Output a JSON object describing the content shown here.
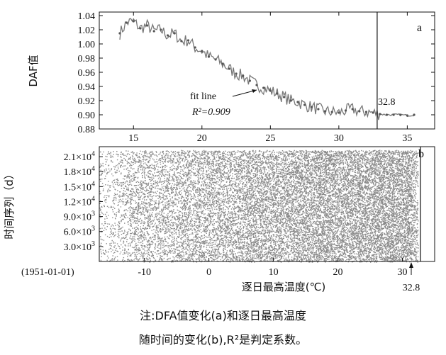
{
  "chart_data": [
    {
      "type": "line",
      "panel_label": "a",
      "ylabel": "DAF值",
      "xlim": [
        12.5,
        37
      ],
      "ylim": [
        0.88,
        1.045
      ],
      "x_ticks": [
        15,
        20,
        25,
        30,
        35
      ],
      "y_ticks": [
        "0.88",
        "0.90",
        "0.92",
        "0.94",
        "0.96",
        "0.98",
        "1.00",
        "1.02",
        "1.04"
      ],
      "x": [
        14,
        14.5,
        15,
        15.5,
        16,
        16.5,
        17,
        17.5,
        18,
        18.5,
        19,
        19.5,
        20,
        20.5,
        21,
        21.5,
        22,
        22.5,
        23,
        23.5,
        24,
        24.5,
        25,
        25.5,
        26,
        26.5,
        27,
        27.5,
        28,
        28.5,
        29,
        29.5,
        30,
        30.5,
        31,
        31.5,
        32,
        32.5,
        33,
        33.5,
        34,
        34.5,
        35,
        35.5
      ],
      "y": [
        1.015,
        1.03,
        1.032,
        1.022,
        1.026,
        1.018,
        1.02,
        1.012,
        1.015,
        1.004,
        1.005,
        0.995,
        0.99,
        0.982,
        0.978,
        0.972,
        0.965,
        0.958,
        0.955,
        0.948,
        0.942,
        0.938,
        0.934,
        0.93,
        0.925,
        0.92,
        0.918,
        0.914,
        0.911,
        0.908,
        0.905,
        0.904,
        0.903,
        0.906,
        0.908,
        0.905,
        0.904,
        0.903,
        0.901,
        0.9,
        0.9,
        0.9,
        0.899,
        0.9
      ],
      "vline_x": 32.8,
      "annotation_value": "32.8",
      "fit_label": "fit line",
      "r2_label": "R²=0.909"
    },
    {
      "type": "scatter",
      "panel_label": "b",
      "xlabel": "逐日最高温度(℃)",
      "ylabel": "时间序列（d）",
      "xlim": [
        -17,
        35
      ],
      "ylim": [
        0,
        23000
      ],
      "x_ticks": [
        -10,
        0,
        10,
        20,
        30
      ],
      "y_ticks": [
        {
          "value": 3000,
          "mantissa": "3.0",
          "exp": "3"
        },
        {
          "value": 6000,
          "mantissa": "6.0",
          "exp": "3"
        },
        {
          "value": 9000,
          "mantissa": "9.0",
          "exp": "3"
        },
        {
          "value": 12000,
          "mantissa": "1.2",
          "exp": "4"
        },
        {
          "value": 15000,
          "mantissa": "1.5",
          "exp": "4"
        },
        {
          "value": 18000,
          "mantissa": "1.8",
          "exp": "4"
        },
        {
          "value": 21000,
          "mantissa": "2.1",
          "exp": "4"
        }
      ],
      "times_symbol": "×10",
      "origin_label": "(1951-01-01)",
      "n_days": 22300,
      "vline_x": 32.8,
      "annotation_value": "32.8"
    }
  ],
  "caption": {
    "line1": "注:DFA值变化(a)和逐日最高温度",
    "line2": "随时间的变化(b),R²是判定系数。"
  }
}
